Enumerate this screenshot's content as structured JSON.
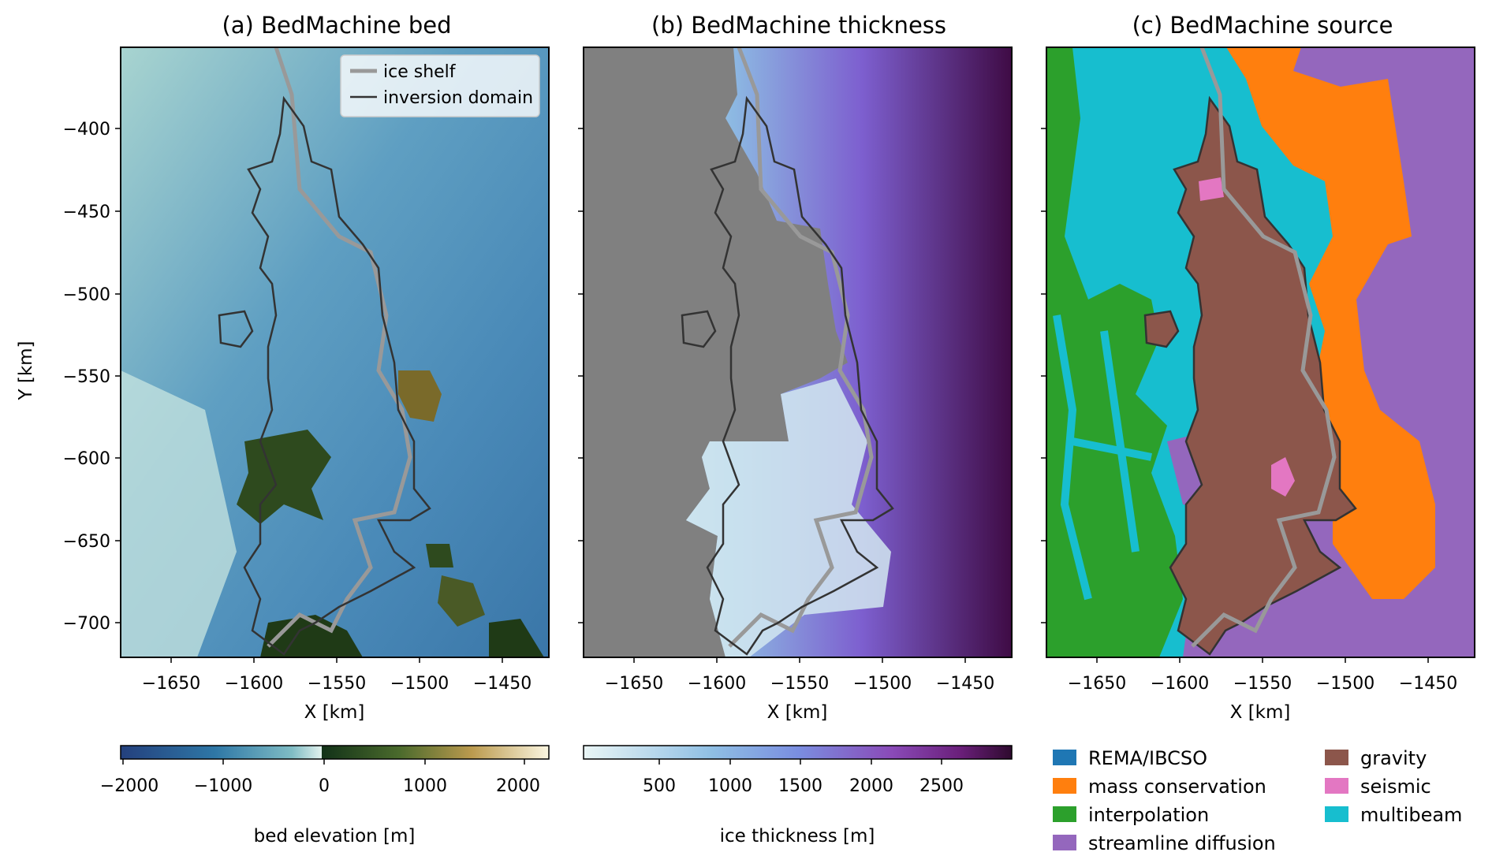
{
  "panels": [
    {
      "title": "(a) BedMachine bed",
      "xlabel": "X [km]",
      "ylabel": "Y [km]",
      "x_ticks": [
        "−1650",
        "−1600",
        "−1550",
        "−1500",
        "−1450"
      ],
      "y_ticks": [
        "−400",
        "−450",
        "−500",
        "−550",
        "−600",
        "−650",
        "−700"
      ],
      "legend": [
        {
          "label": "ice shelf",
          "color": "#999999"
        },
        {
          "label": "inversion domain",
          "color": "#333333"
        }
      ],
      "colorbar": {
        "label": "bed elevation [m]",
        "ticks": [
          "−2000",
          "−1000",
          "0",
          "1000",
          "2000"
        ]
      }
    },
    {
      "title": "(b) BedMachine thickness",
      "xlabel": "X [km]",
      "x_ticks": [
        "−1650",
        "−1600",
        "−1550",
        "−1500",
        "−1450"
      ],
      "colorbar": {
        "label": "ice thickness [m]",
        "ticks": [
          "500",
          "1000",
          "1500",
          "2000",
          "2500"
        ]
      }
    },
    {
      "title": "(c) BedMachine source",
      "xlabel": "X [km]",
      "x_ticks": [
        "−1650",
        "−1600",
        "−1550",
        "−1500",
        "−1450"
      ],
      "legend": [
        {
          "label": "REMA/IBCSO",
          "color": "#1f77b4"
        },
        {
          "label": "mass conservation",
          "color": "#ff7f0e"
        },
        {
          "label": "interpolation",
          "color": "#2ca02c"
        },
        {
          "label": "streamline diffusion",
          "color": "#9467bd"
        },
        {
          "label": "gravity",
          "color": "#8c564b"
        },
        {
          "label": "seismic",
          "color": "#e377c2"
        },
        {
          "label": "multibeam",
          "color": "#17becf"
        }
      ]
    }
  ]
}
